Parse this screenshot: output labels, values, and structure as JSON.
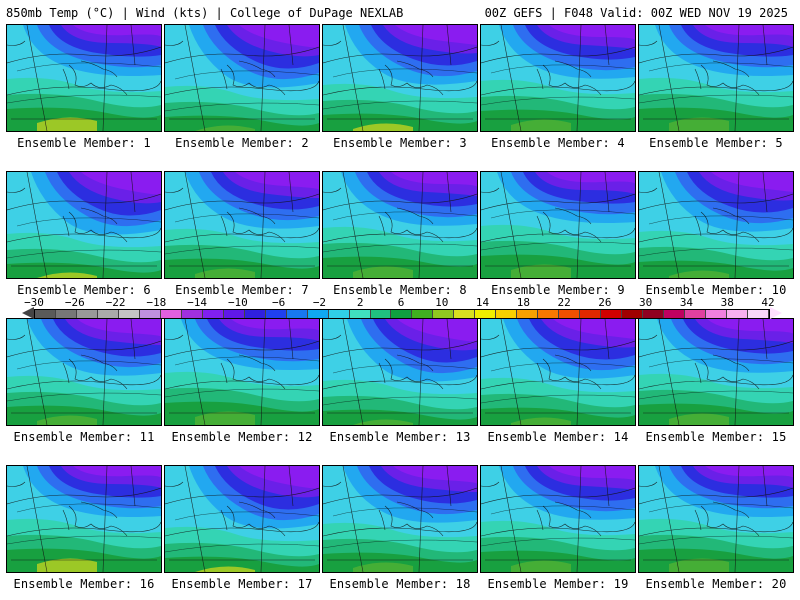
{
  "header": {
    "left": "850mb Temp (°C) | Wind (kts) | College of DuPage NEXLAB",
    "right": "00Z GEFS | F048 Valid: 00Z WED NOV 19 2025"
  },
  "members": [
    {
      "label": "Ensemble Member: 1"
    },
    {
      "label": "Ensemble Member: 2"
    },
    {
      "label": "Ensemble Member: 3"
    },
    {
      "label": "Ensemble Member: 4"
    },
    {
      "label": "Ensemble Member: 5"
    },
    {
      "label": "Ensemble Member: 6"
    },
    {
      "label": "Ensemble Member: 7"
    },
    {
      "label": "Ensemble Member: 8"
    },
    {
      "label": "Ensemble Member: 9"
    },
    {
      "label": "Ensemble Member: 10"
    },
    {
      "label": "Ensemble Member: 11"
    },
    {
      "label": "Ensemble Member: 12"
    },
    {
      "label": "Ensemble Member: 13"
    },
    {
      "label": "Ensemble Member: 14"
    },
    {
      "label": "Ensemble Member: 15"
    },
    {
      "label": "Ensemble Member: 16"
    },
    {
      "label": "Ensemble Member: 17"
    },
    {
      "label": "Ensemble Member: 18"
    },
    {
      "label": "Ensemble Member: 19"
    },
    {
      "label": "Ensemble Member: 20"
    }
  ],
  "colorbar": {
    "ticks": [
      "−30",
      "−26",
      "−22",
      "−18",
      "−14",
      "−10",
      "−6",
      "−2",
      "2",
      "6",
      "10",
      "14",
      "18",
      "22",
      "26",
      "30",
      "34",
      "38",
      "42"
    ],
    "colors": [
      "#5a5a5a",
      "#777777",
      "#999999",
      "#aaaaaa",
      "#c4c4c4",
      "#c090e0",
      "#e060e0",
      "#a030e0",
      "#8020f0",
      "#6018e8",
      "#3020e0",
      "#2040f0",
      "#1878f0",
      "#10a8f0",
      "#30d0e8",
      "#40e0c0",
      "#20c080",
      "#10a040",
      "#40b020",
      "#90c820",
      "#d8e020",
      "#f0f000",
      "#f8d000",
      "#f8a000",
      "#f87800",
      "#f05000",
      "#e02800",
      "#d00000",
      "#a00000",
      "#900020",
      "#c00060",
      "#e040a0",
      "#f080e0",
      "#f8b0f0",
      "#f8d8f8"
    ],
    "left_arrow_color": "#444444",
    "right_arrow_color": "#ffe0ff"
  },
  "map_colors": {
    "purple": "#8a1cf0",
    "violet": "#6a20e8",
    "blue": "#2c2ee0",
    "mid_blue": "#2e6ef0",
    "light_blue": "#22a8f0",
    "cyan": "#3ed0e6",
    "teal": "#34d4b4",
    "green": "#22b878",
    "dark_green": "#18a040",
    "yellow_green": "#9cc826"
  }
}
